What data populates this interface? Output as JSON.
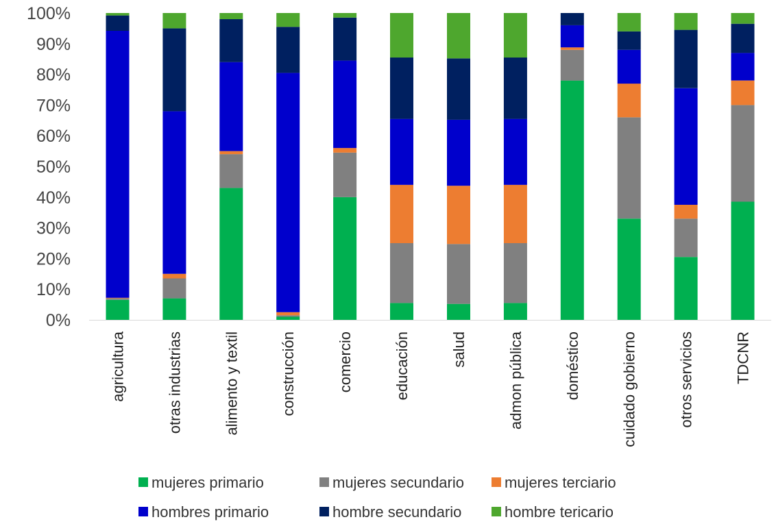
{
  "chart_data": {
    "type": "bar",
    "stacked": true,
    "title": "",
    "xlabel": "",
    "ylabel": "",
    "ylim": [
      0,
      100
    ],
    "y_ticks": [
      "0%",
      "10%",
      "20%",
      "30%",
      "40%",
      "50%",
      "60%",
      "70%",
      "80%",
      "90%",
      "100%"
    ],
    "grid": false,
    "legend_position": "bottom",
    "categories": [
      "agricultura",
      "otras industrias",
      "alimento y textil",
      "construcción",
      "comercio",
      "educación",
      "salud",
      "admon pública",
      "doméstico",
      "cuidado gobierno",
      "otros servicios",
      "TDCNR"
    ],
    "series": [
      {
        "name": "mujeres primario",
        "color": "#00B050",
        "values": [
          6.5,
          7.0,
          43.0,
          1.0,
          40.0,
          5.5,
          5.2,
          5.5,
          78.0,
          33.0,
          20.5,
          38.5
        ]
      },
      {
        "name": "mujeres secundario",
        "color": "#808080",
        "values": [
          0.5,
          6.5,
          11.0,
          0.5,
          14.5,
          19.5,
          19.5,
          19.5,
          10.0,
          33.0,
          12.5,
          31.5
        ]
      },
      {
        "name": "mujeres terciario",
        "color": "#ED7D31",
        "values": [
          0.2,
          1.5,
          1.0,
          1.0,
          1.5,
          19.0,
          19.0,
          19.0,
          0.8,
          11.0,
          4.5,
          8.0
        ]
      },
      {
        "name": "hombres primario",
        "color": "#0000CC",
        "values": [
          87.0,
          53.0,
          29.0,
          78.0,
          28.5,
          21.5,
          21.5,
          21.5,
          7.2,
          11.0,
          38.0,
          9.0
        ]
      },
      {
        "name": "hombre secundario",
        "color": "#002060",
        "values": [
          5.0,
          27.0,
          14.0,
          15.0,
          14.0,
          20.0,
          20.0,
          20.0,
          4.0,
          6.0,
          19.0,
          9.5
        ]
      },
      {
        "name": "hombre tericario",
        "color": "#4EA72E",
        "values": [
          0.8,
          5.0,
          2.0,
          4.5,
          1.5,
          14.5,
          14.8,
          14.5,
          0.0,
          6.0,
          5.5,
          3.5
        ]
      }
    ]
  }
}
